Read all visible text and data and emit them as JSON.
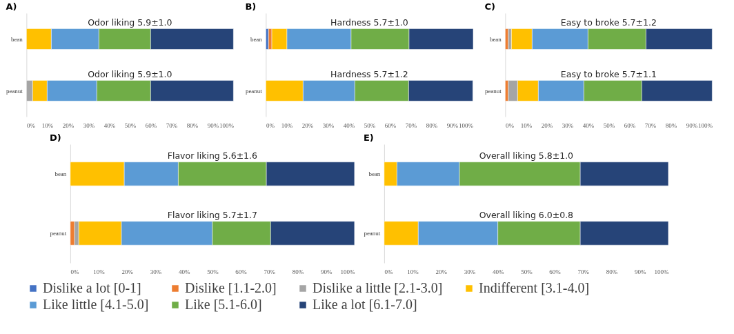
{
  "chart_data": [
    {
      "type": "bar",
      "orientation": "horizontal",
      "stacked": true,
      "title": "A)",
      "categories": [
        "bean",
        "peanut"
      ],
      "xlim": [
        0,
        100
      ],
      "xticks": [
        {
          "value": 0,
          "label": "0%"
        },
        {
          "value": 10,
          "label": "10%"
        },
        {
          "value": 20,
          "label": "20%"
        },
        {
          "value": 30,
          "label": "30%"
        },
        {
          "value": 40,
          "label": "40%"
        },
        {
          "value": 50,
          "label": "50%"
        },
        {
          "value": 60,
          "label": "60%"
        },
        {
          "value": 70,
          "label": "70%"
        },
        {
          "value": 80,
          "label": "80%"
        },
        {
          "value": 90,
          "label": "90%"
        },
        {
          "value": 100,
          "label": "100%"
        }
      ],
      "legend": "bottom",
      "annotations": [
        "Odor liking 5.9±1.0",
        "Odor liking 5.9±1.0"
      ],
      "series": [
        {
          "name": "Dislike a lot [0-1]",
          "color": "#4472c4",
          "values": [
            null,
            null
          ]
        },
        {
          "name": "Dislike [1.1-2.0]",
          "color": "#ed7d31",
          "values": [
            null,
            null
          ]
        },
        {
          "name": "Dislike a little [2.1-3.0]",
          "color": "#a5a5a5",
          "values": [
            null,
            3
          ]
        },
        {
          "name": "Indifferent [3.1-4.0]",
          "color": "#ffc000",
          "values": [
            12,
            7
          ]
        },
        {
          "name": "Like little [4.1-5.0]",
          "color": "#5b9bd5",
          "values": [
            23,
            24
          ]
        },
        {
          "name": "Like [5.1-6.0]",
          "color": "#70ad47",
          "values": [
            25,
            26
          ]
        },
        {
          "name": "Like a lot [6.1-7.0]",
          "color": "#264478",
          "values": [
            40,
            40
          ]
        }
      ]
    },
    {
      "type": "bar",
      "orientation": "horizontal",
      "stacked": true,
      "title": "B)",
      "categories": [
        "bean",
        "peanut"
      ],
      "xlim": [
        0,
        100
      ],
      "xticks": [
        {
          "value": 0,
          "label": "0%"
        },
        {
          "value": 10,
          "label": "10%"
        },
        {
          "value": 20,
          "label": "20%"
        },
        {
          "value": 30,
          "label": "30%"
        },
        {
          "value": 40,
          "label": "40%"
        },
        {
          "value": 50,
          "label": "50%"
        },
        {
          "value": 60,
          "label": "60%"
        },
        {
          "value": 70,
          "label": "70%"
        },
        {
          "value": 80,
          "label": "80%"
        },
        {
          "value": 90,
          "label": "90%"
        },
        {
          "value": 100,
          "label": "100%"
        }
      ],
      "legend": "bottom",
      "annotations": [
        "Hardness 5.7±1.0",
        "Hardness 5.7±1.2"
      ],
      "series": [
        {
          "color": "#4472c4",
          "values": [
            1.3,
            null
          ]
        },
        {
          "color": "#ed7d31",
          "values": [
            1.6,
            null
          ]
        },
        {
          "color": "#ffc000",
          "values": [
            7.3,
            18
          ]
        },
        {
          "color": "#5b9bd5",
          "values": [
            31,
            25
          ]
        },
        {
          "color": "#70ad47",
          "values": [
            28,
            26
          ]
        },
        {
          "color": "#264478",
          "values": [
            31,
            31
          ]
        }
      ]
    },
    {
      "type": "bar",
      "orientation": "horizontal",
      "stacked": true,
      "title": "C)",
      "categories": [
        "bean",
        "peanut"
      ],
      "xlim": [
        0,
        100
      ],
      "xticks": [
        {
          "value": 0,
          "label": "0%"
        },
        {
          "value": 10,
          "label": "10%"
        },
        {
          "value": 20,
          "label": "20%"
        },
        {
          "value": 30,
          "label": "30%"
        },
        {
          "value": 40,
          "label": "40%"
        },
        {
          "value": 50,
          "label": "50%"
        },
        {
          "value": 60,
          "label": "60%"
        },
        {
          "value": 70,
          "label": "70%"
        },
        {
          "value": 80,
          "label": "80%"
        },
        {
          "value": 90,
          "label": "90%"
        },
        {
          "value": 100,
          "label": "100%"
        }
      ],
      "legend": "bottom",
      "annotations": [
        "Easy to broke 5.7±1.2",
        "Easy to broke 5.7±1.1"
      ],
      "series": [
        {
          "color": "#ed7d31",
          "values": [
            1.5,
            1.5
          ]
        },
        {
          "color": "#a5a5a5",
          "values": [
            1.5,
            4.5
          ]
        },
        {
          "color": "#ffc000",
          "values": [
            10,
            10
          ]
        },
        {
          "color": "#5b9bd5",
          "values": [
            27,
            22
          ]
        },
        {
          "color": "#70ad47",
          "values": [
            28,
            28
          ]
        },
        {
          "color": "#264478",
          "values": [
            32,
            34
          ]
        }
      ]
    },
    {
      "type": "bar",
      "orientation": "horizontal",
      "stacked": true,
      "title": "D)",
      "categories": [
        "bean",
        "peanut"
      ],
      "xlim": [
        0,
        100
      ],
      "xticks": [
        {
          "value": 0,
          "label": "0%"
        },
        {
          "value": 10,
          "label": "10%"
        },
        {
          "value": 20,
          "label": "20%"
        },
        {
          "value": 30,
          "label": "30%"
        },
        {
          "value": 40,
          "label": "40%"
        },
        {
          "value": 50,
          "label": "50%"
        },
        {
          "value": 60,
          "label": "60%"
        },
        {
          "value": 70,
          "label": "70%"
        },
        {
          "value": 80,
          "label": "80%"
        },
        {
          "value": 90,
          "label": "90%"
        },
        {
          "value": 100,
          "label": "100%"
        }
      ],
      "legend": "bottom",
      "annotations": [
        "Flavor liking 5.6±1.6",
        "Flavor liking 5.7±1.7"
      ],
      "series": [
        {
          "color": "#ed7d31",
          "values": [
            null,
            1.5
          ]
        },
        {
          "color": "#a5a5a5",
          "values": [
            null,
            1.5
          ]
        },
        {
          "color": "#ffc000",
          "values": [
            19,
            15
          ]
        },
        {
          "color": "#5b9bd5",
          "values": [
            19,
            32
          ]
        },
        {
          "color": "#70ad47",
          "values": [
            31,
            20.5
          ]
        },
        {
          "color": "#264478",
          "values": [
            31,
            29.5
          ]
        }
      ]
    },
    {
      "type": "bar",
      "orientation": "horizontal",
      "stacked": true,
      "title": "E)",
      "categories": [
        "bean",
        "peanut"
      ],
      "xlim": [
        0,
        100
      ],
      "xticks": [
        {
          "value": 0,
          "label": "0%"
        },
        {
          "value": 10,
          "label": "10%"
        },
        {
          "value": 20,
          "label": "20%"
        },
        {
          "value": 30,
          "label": "30%"
        },
        {
          "value": 40,
          "label": "40%"
        },
        {
          "value": 50,
          "label": "50%"
        },
        {
          "value": 60,
          "label": "60%"
        },
        {
          "value": 70,
          "label": "70%"
        },
        {
          "value": 80,
          "label": "80%"
        },
        {
          "value": 90,
          "label": "90%"
        },
        {
          "value": 100,
          "label": "100%"
        }
      ],
      "legend": "bottom",
      "annotations": [
        "Overall liking 5.8±1.0",
        "Overall liking 6.0±0.8"
      ],
      "series": [
        {
          "color": "#ffc000",
          "values": [
            4.5,
            12
          ]
        },
        {
          "color": "#5b9bd5",
          "values": [
            22,
            28
          ]
        },
        {
          "color": "#70ad47",
          "values": [
            42.5,
            29
          ]
        },
        {
          "color": "#264478",
          "values": [
            31,
            31
          ]
        }
      ]
    }
  ]
}
